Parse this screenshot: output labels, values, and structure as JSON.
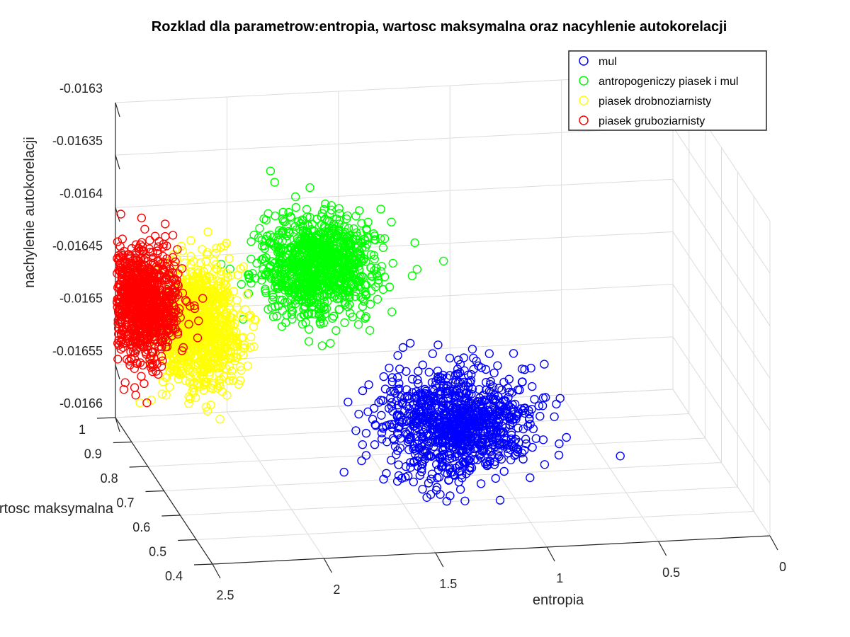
{
  "chart_data": {
    "type": "scatter",
    "title": "Rozklad dla parametrow:entropia, wartosc maksymalna oraz nacyhlenie autokorelacji",
    "xlabel": "entropia",
    "ylabel": "wartosc maksymalna",
    "zlabel": "nachylenie autokorelacji",
    "xlim": [
      0,
      2.5
    ],
    "ylim": [
      0.4,
      1
    ],
    "zlim": [
      -0.0166,
      -0.0163
    ],
    "x_ticks": [
      "0",
      "0.5",
      "1",
      "1.5",
      "2",
      "2.5"
    ],
    "y_ticks": [
      "0.4",
      "0.5",
      "0.6",
      "0.7",
      "0.8",
      "0.9",
      "1"
    ],
    "z_ticks": [
      "-0.0166",
      "-0.01655",
      "-0.0165",
      "-0.01645",
      "-0.0164",
      "-0.01635",
      "-0.0163"
    ],
    "grid": true,
    "marker": "open-circle",
    "legend_position": "top-right",
    "series": [
      {
        "name": "mul",
        "color": "#0000ff",
        "center": {
          "x": 1.25,
          "y": 0.62,
          "z": -0.01653
        },
        "spread": {
          "x": 0.16,
          "y": 0.055,
          "z": 2.2e-05
        },
        "count": 1000
      },
      {
        "name": "antropogeniczy piasek i mul",
        "color": "#00ff00",
        "center": {
          "x": 1.6,
          "y": 0.98,
          "z": -0.01646
        },
        "spread": {
          "x": 0.13,
          "y": 0.03,
          "z": 2.2e-05
        },
        "count": 1000
      },
      {
        "name": "piasek drobnoziarnisty",
        "color": "#ffff00",
        "center": {
          "x": 2.2,
          "y": 0.9,
          "z": -0.01649
        },
        "spread": {
          "x": 0.09,
          "y": 0.035,
          "z": 2.8e-05
        },
        "count": 1000
      },
      {
        "name": "piasek gruboziarnisty",
        "color": "#ff0000",
        "center": {
          "x": 2.45,
          "y": 0.9,
          "z": -0.01647
        },
        "spread": {
          "x": 0.08,
          "y": 0.035,
          "z": 2.6e-05
        },
        "count": 1000
      }
    ]
  }
}
